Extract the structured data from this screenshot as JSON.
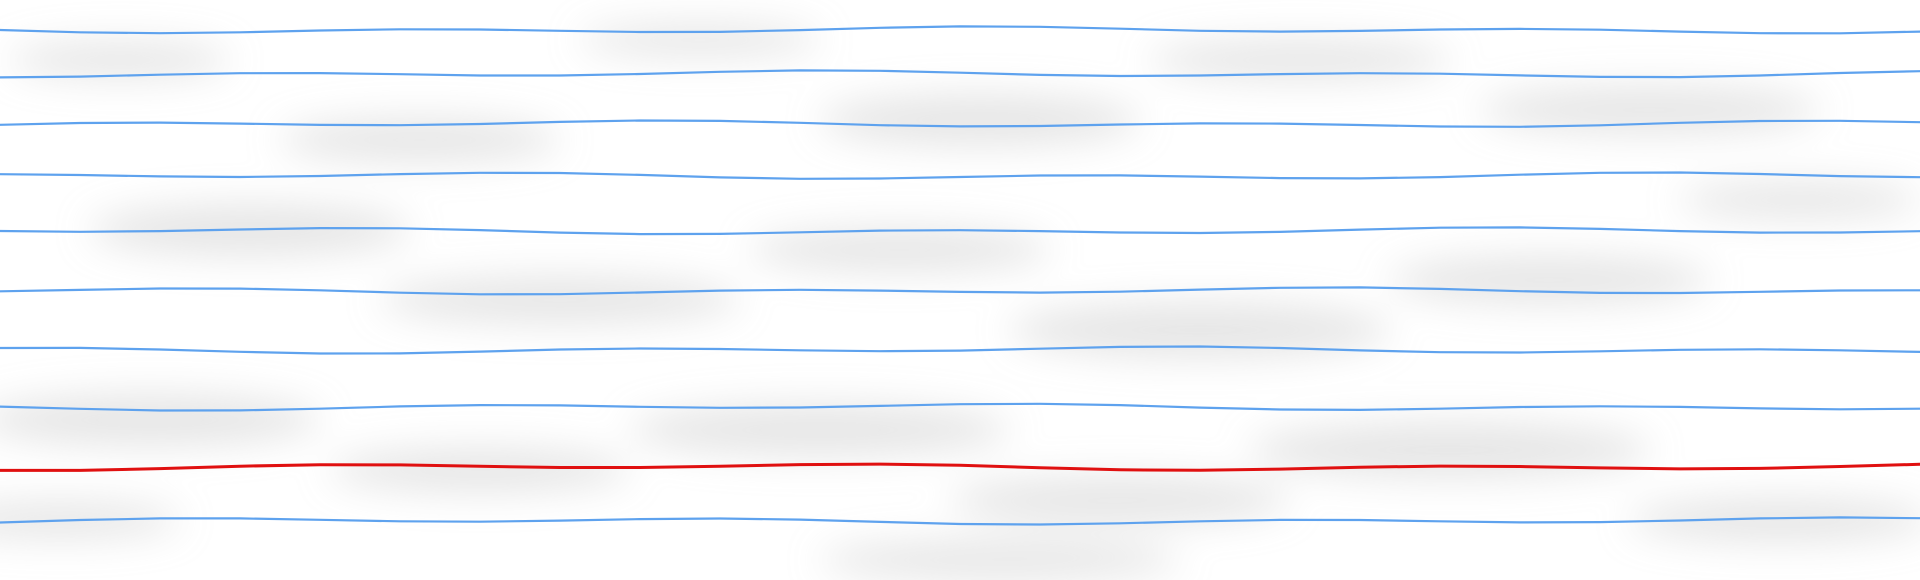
{
  "paper": {
    "background_color": "#ffffff",
    "shadow_color": "#c8c8c8"
  },
  "rule_lines": {
    "blue_line_color": "#5ea2ee",
    "red_line_color": "#e01010",
    "lines": [
      {
        "color": "blue"
      },
      {
        "color": "blue"
      },
      {
        "color": "blue"
      },
      {
        "color": "blue"
      },
      {
        "color": "blue"
      },
      {
        "color": "blue"
      },
      {
        "color": "blue"
      },
      {
        "color": "blue"
      },
      {
        "color": "red"
      },
      {
        "color": "blue"
      }
    ]
  }
}
